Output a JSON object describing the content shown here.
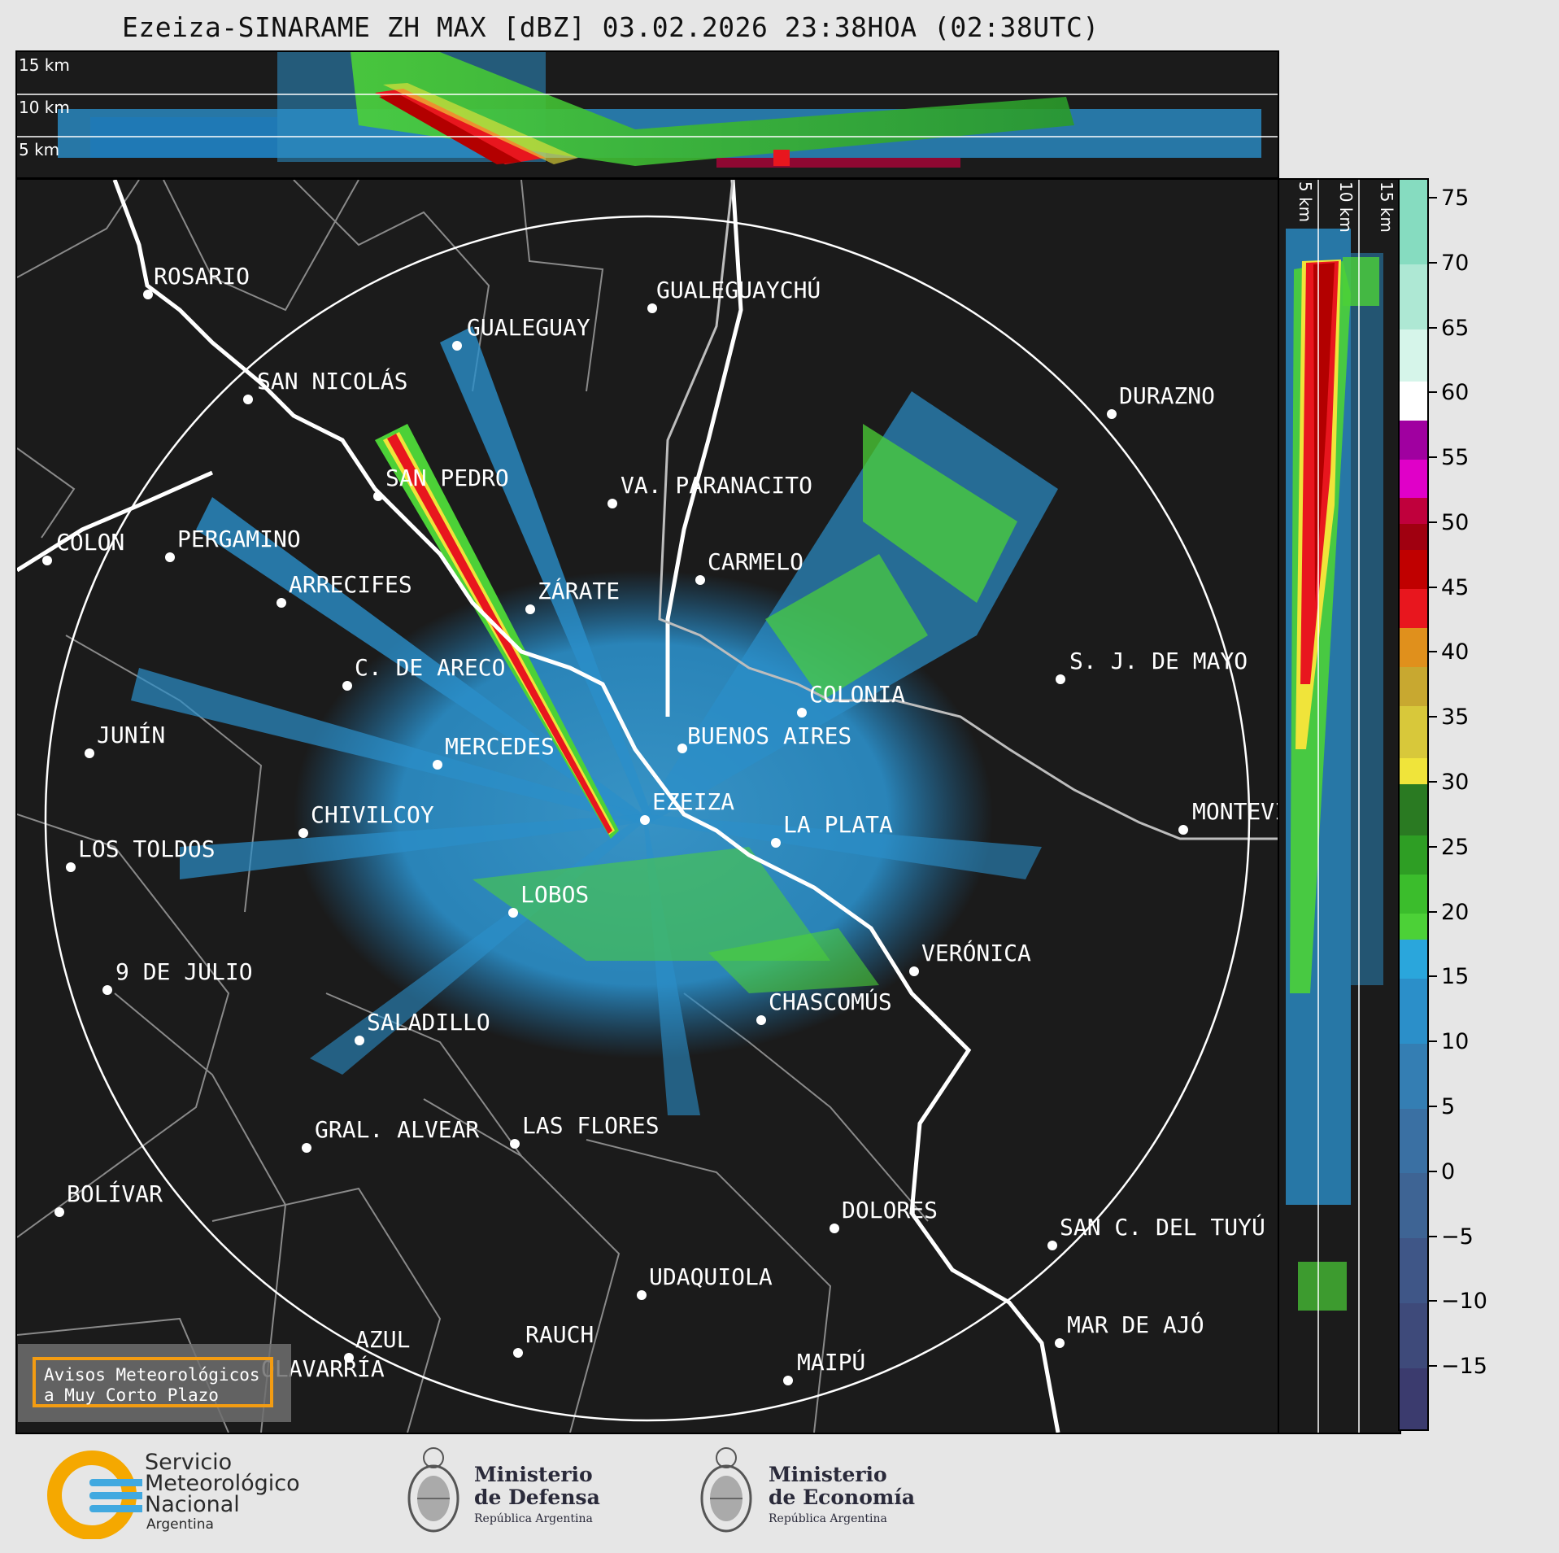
{
  "title": "Ezeiza-SINARAME ZH MAX [dBZ] 03.02.2026 23:38HOA (02:38UTC)",
  "top_altitudes": [
    "15 km",
    "10 km",
    "5 km"
  ],
  "side_altitudes": [
    "5 km",
    "10 km",
    "15 km"
  ],
  "cities": [
    {
      "name": "ROSARIO"
    },
    {
      "name": "GUALEGUAYCHÚ"
    },
    {
      "name": "GUALEGUAY"
    },
    {
      "name": "SAN NICOLÁS"
    },
    {
      "name": "DURAZNO"
    },
    {
      "name": "SAN PEDRO"
    },
    {
      "name": "VA. PARANACITO"
    },
    {
      "name": "COLON"
    },
    {
      "name": "PERGAMINO"
    },
    {
      "name": "CARMELO"
    },
    {
      "name": "ARRECIFES"
    },
    {
      "name": "ZÁRATE"
    },
    {
      "name": "S. J. DE MAYO"
    },
    {
      "name": "C. DE ARECO"
    },
    {
      "name": "COLONIA"
    },
    {
      "name": "JUNÍN"
    },
    {
      "name": "BUENOS AIRES"
    },
    {
      "name": "MERCEDES"
    },
    {
      "name": "EZEIZA"
    },
    {
      "name": "MONTEVIDEO"
    },
    {
      "name": "CHIVILCOY"
    },
    {
      "name": "LA PLATA"
    },
    {
      "name": "LOS TOLDOS"
    },
    {
      "name": "LOBOS"
    },
    {
      "name": "VERÓNICA"
    },
    {
      "name": "9 DE JULIO"
    },
    {
      "name": "CHASCOMÚS"
    },
    {
      "name": "SALADILLO"
    },
    {
      "name": "GRAL. ALVEAR"
    },
    {
      "name": "LAS FLORES"
    },
    {
      "name": "BOLÍVAR"
    },
    {
      "name": "DOLORES"
    },
    {
      "name": "SAN C. DEL TUYÚ"
    },
    {
      "name": "UDAQUIOLA"
    },
    {
      "name": "MAR DE AJÓ"
    },
    {
      "name": "RAUCH"
    },
    {
      "name": "AZUL"
    },
    {
      "name": "OLAVARRÍA"
    },
    {
      "name": "MAIPÚ"
    }
  ],
  "colorbar": {
    "unit": "dBZ",
    "min": -20,
    "max": 76.5,
    "ticks": [
      "75",
      "70",
      "65",
      "60",
      "55",
      "50",
      "45",
      "40",
      "35",
      "30",
      "25",
      "20",
      "15",
      "10",
      "5",
      "0",
      "−5",
      "−10",
      "−15"
    ]
  },
  "warning": {
    "line1": "Avisos Meteorológicos",
    "line2": "a Muy Corto Plazo"
  },
  "logos": {
    "smn": {
      "line1": "Servicio",
      "line2": "Meteorológico",
      "line3": "Nacional",
      "line4": "Argentina"
    },
    "defensa": {
      "line1": "Ministerio",
      "line2": "de Defensa",
      "line3": "República Argentina"
    },
    "economia": {
      "line1": "Ministerio",
      "line2": "de Economía",
      "line3": "República Argentina"
    }
  },
  "colors": {
    "background": "#1b1b1b",
    "coast": "#ffffff",
    "borders": "#8a8a8a",
    "accent": "#f39c12"
  }
}
